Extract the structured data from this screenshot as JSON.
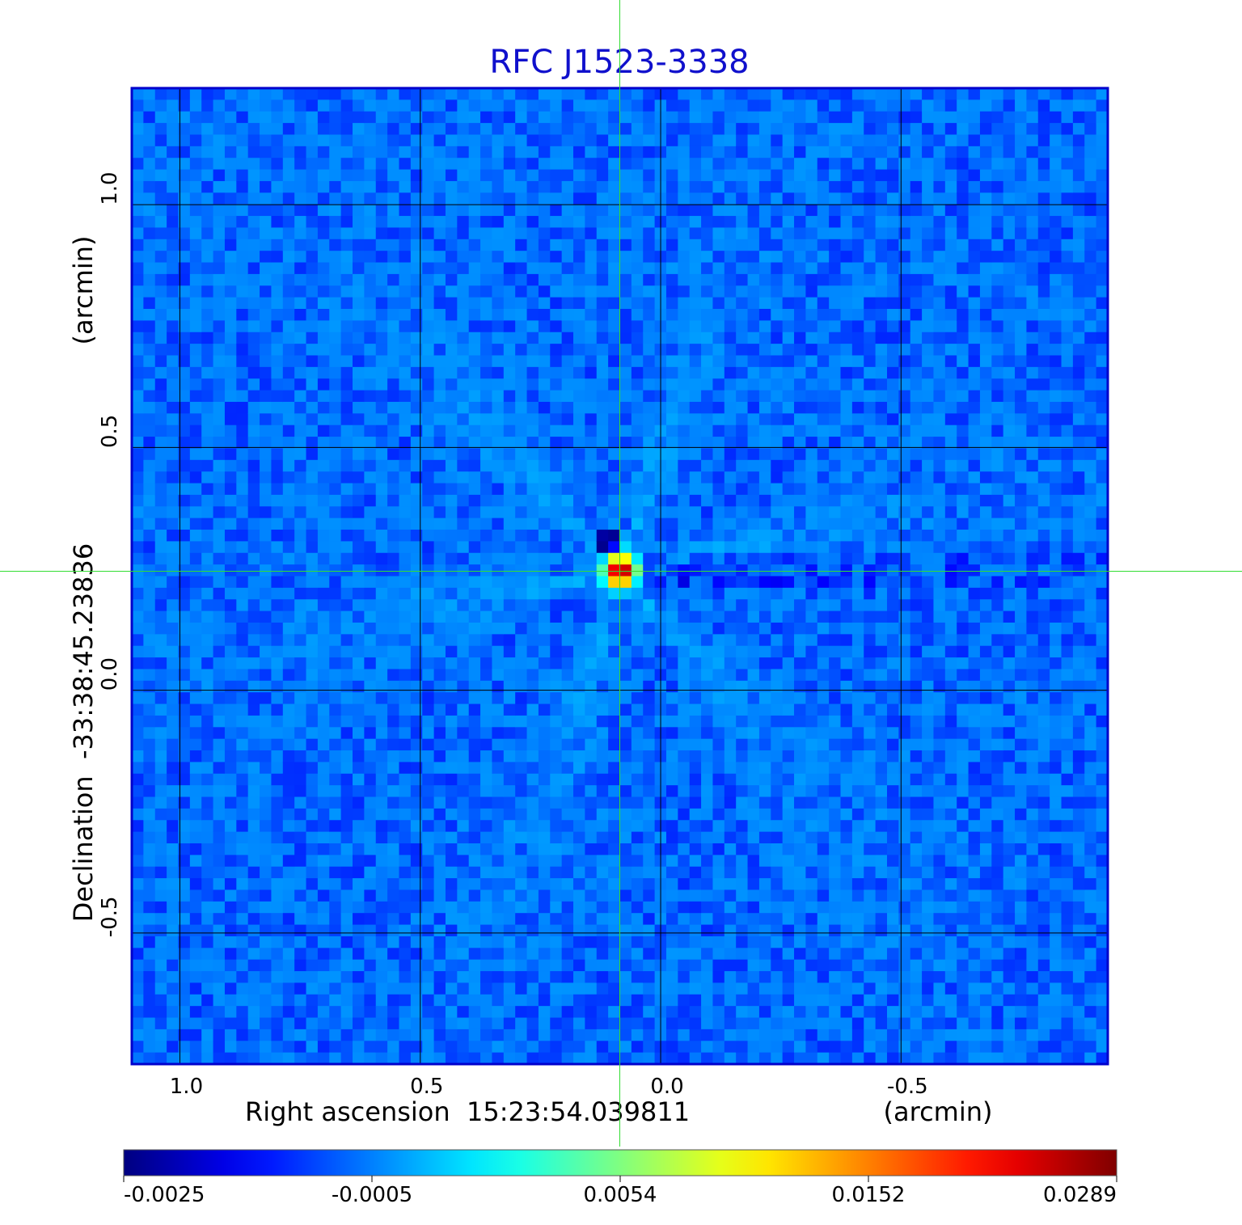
{
  "chart_data": {
    "type": "heatmap",
    "title": "RFC J1523-3338",
    "xlabel": "Right ascension  15:23:54.039811",
    "xunit": "(arcmin)",
    "ylabel": "Declination  -33:38:45.23836",
    "yunit": "(arcmin)",
    "x_ticks": [
      1.0,
      0.5,
      0.0,
      -0.5
    ],
    "x_tick_labels": [
      "1.0",
      "0.5",
      "0.0",
      "-0.5"
    ],
    "y_ticks": [
      1.0,
      0.5,
      0.0,
      -0.5
    ],
    "y_tick_labels": [
      "1.0",
      "0.5",
      "0.0",
      "-0.5"
    ],
    "xlim": [
      1.1,
      -0.93
    ],
    "ylim": [
      -0.77,
      1.24
    ],
    "grid": true,
    "crosshair": {
      "x": 0.085,
      "y": 0.245,
      "color": "#33dd33"
    },
    "colorbar": {
      "min": -0.0025,
      "max": 0.0289,
      "tick_values": [
        -0.0025,
        -0.0005,
        0.0054,
        0.0152,
        0.0289
      ],
      "tick_labels": [
        "-0.0025",
        "-0.0005",
        "0.0054",
        "0.0152",
        "0.0289"
      ],
      "colormap": "jet"
    },
    "source": {
      "x": 0.085,
      "y": 0.245,
      "peak": 0.0289
    },
    "background_level": -0.0006,
    "colors": {
      "title": "#1010cc",
      "frame": "#0000cc",
      "grid": "#000000",
      "text": "#000000"
    }
  }
}
